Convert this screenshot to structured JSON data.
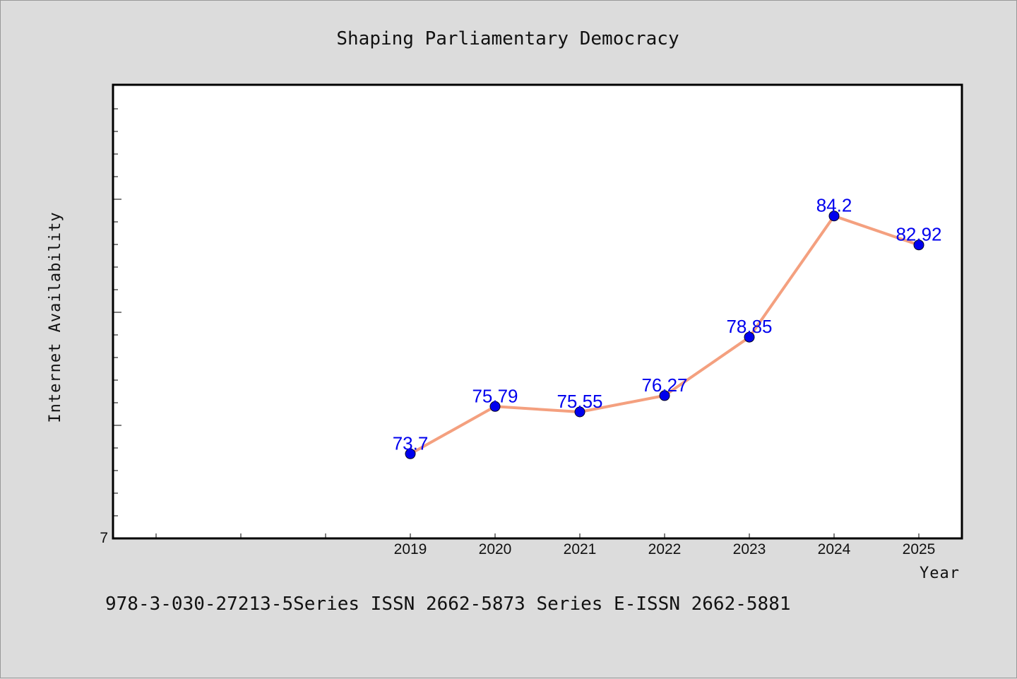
{
  "chart_data": {
    "type": "line",
    "title": "Shaping Parliamentary Democracy",
    "xlabel": "Year",
    "ylabel": "Internet Availability",
    "categories": [
      "2019",
      "2020",
      "2021",
      "2022",
      "2023",
      "2024",
      "2025"
    ],
    "series": [
      {
        "values": [
          73.7,
          75.79,
          75.55,
          76.27,
          78.85,
          84.2,
          82.92
        ],
        "value_labels": [
          "73.7",
          "75.79",
          "75.55",
          "76.27",
          "78.85",
          "84.2",
          "82.92"
        ],
        "line_color": "#f4a07f",
        "marker_color": "#0000ee"
      }
    ],
    "ytick_labels": [
      "7"
    ],
    "grid": false
  },
  "footer": {
    "text": "978-3-030-27213-5Series ISSN 2662-5873 Series E-ISSN 2662-5881"
  }
}
